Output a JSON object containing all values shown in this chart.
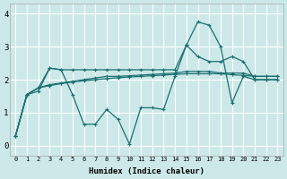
{
  "xlabel": "Humidex (Indice chaleur)",
  "background_color": "#cce8e8",
  "grid_color": "#ffffff",
  "line_color": "#1a7070",
  "xlim": [
    -0.5,
    23.5
  ],
  "ylim": [
    -0.3,
    4.3
  ],
  "xticks": [
    0,
    1,
    2,
    3,
    4,
    5,
    6,
    7,
    8,
    9,
    10,
    11,
    12,
    13,
    14,
    15,
    16,
    17,
    18,
    19,
    20,
    21,
    22,
    23
  ],
  "yticks": [
    0,
    1,
    2,
    3,
    4
  ],
  "series": [
    [
      0.3,
      1.55,
      1.65,
      2.35,
      2.3,
      1.55,
      0.65,
      0.65,
      1.1,
      0.8,
      0.05,
      1.15,
      1.15,
      1.1,
      2.1,
      3.05,
      3.75,
      3.65,
      3.0,
      1.3,
      2.1,
      2.0,
      2.0,
      2.0
    ],
    [
      0.3,
      1.55,
      1.75,
      2.35,
      2.3,
      2.3,
      2.3,
      2.3,
      2.3,
      2.3,
      2.3,
      2.3,
      2.3,
      2.3,
      2.3,
      3.05,
      2.7,
      2.55,
      2.55,
      2.7,
      2.55,
      2.0,
      2.0,
      2.0
    ],
    [
      0.3,
      1.55,
      1.75,
      1.85,
      1.9,
      1.95,
      2.0,
      2.05,
      2.1,
      2.1,
      2.12,
      2.14,
      2.16,
      2.18,
      2.2,
      2.25,
      2.25,
      2.25,
      2.2,
      2.2,
      2.2,
      2.1,
      2.1,
      2.1
    ],
    [
      0.3,
      1.55,
      1.75,
      1.82,
      1.88,
      1.93,
      1.97,
      2.0,
      2.03,
      2.06,
      2.08,
      2.1,
      2.12,
      2.14,
      2.16,
      2.18,
      2.18,
      2.18,
      2.18,
      2.15,
      2.13,
      2.1,
      2.1,
      2.1
    ]
  ]
}
